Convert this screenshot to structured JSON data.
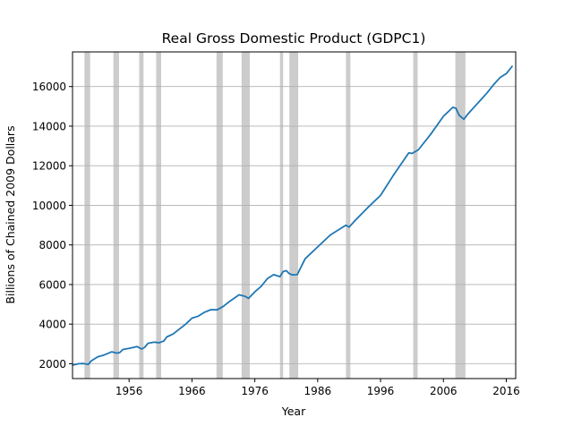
{
  "chart_data": {
    "type": "line",
    "title": "Real Gross Domestic Product (GDPC1)",
    "xlabel": "Year",
    "ylabel": "Billions of Chained 2009 Dollars",
    "xlim": [
      1947,
      2017.5
    ],
    "ylim": [
      1250,
      17750
    ],
    "x_ticks": [
      1956,
      1966,
      1976,
      1986,
      1996,
      2006,
      2016
    ],
    "y_ticks": [
      2000,
      4000,
      6000,
      8000,
      10000,
      12000,
      14000,
      16000
    ],
    "grid": "y",
    "legend": "none",
    "line_color": "#1f77b4",
    "recession_color": "#cccccc",
    "recessions": [
      [
        1948.9,
        1949.8
      ],
      [
        1953.5,
        1954.4
      ],
      [
        1957.6,
        1958.3
      ],
      [
        1960.3,
        1961.1
      ],
      [
        1969.9,
        1970.9
      ],
      [
        1973.9,
        1975.2
      ],
      [
        1980.0,
        1980.5
      ],
      [
        1981.5,
        1982.9
      ],
      [
        1990.5,
        1991.2
      ],
      [
        2001.2,
        2001.9
      ],
      [
        2007.9,
        2009.5
      ]
    ],
    "series": [
      {
        "x": [
          1947,
          1948,
          1948.75,
          1949.5,
          1950,
          1951,
          1952,
          1953.25,
          1954,
          1954.5,
          1955,
          1956,
          1957.25,
          1958,
          1958.5,
          1959,
          1960,
          1960.75,
          1961.5,
          1962,
          1963,
          1964,
          1965,
          1966,
          1967,
          1968,
          1969,
          1970,
          1971,
          1972,
          1973.5,
          1974.5,
          1975,
          1976,
          1977,
          1978,
          1979,
          1980,
          1980.5,
          1981,
          1981.5,
          1982,
          1982.75,
          1984,
          1986,
          1988,
          1990.5,
          1991,
          1992,
          1994,
          1996,
          1998,
          2000.5,
          2001,
          2002,
          2004,
          2006,
          2007.5,
          2008,
          2008.5,
          2009.25,
          2010,
          2011,
          2012,
          2013,
          2014,
          2015,
          2016,
          2017
        ],
        "y": [
          1930,
          2000,
          2010,
          1970,
          2150,
          2350,
          2440,
          2600,
          2540,
          2560,
          2720,
          2780,
          2870,
          2740,
          2830,
          3030,
          3090,
          3060,
          3140,
          3350,
          3500,
          3750,
          4000,
          4300,
          4400,
          4600,
          4730,
          4720,
          4900,
          5150,
          5480,
          5400,
          5300,
          5630,
          5900,
          6300,
          6500,
          6400,
          6650,
          6700,
          6550,
          6490,
          6500,
          7300,
          7900,
          8500,
          9000,
          8900,
          9250,
          9900,
          10500,
          11500,
          12650,
          12620,
          12800,
          13600,
          14500,
          14950,
          14900,
          14550,
          14350,
          14650,
          15000,
          15350,
          15700,
          16100,
          16450,
          16650,
          17050
        ]
      }
    ]
  }
}
